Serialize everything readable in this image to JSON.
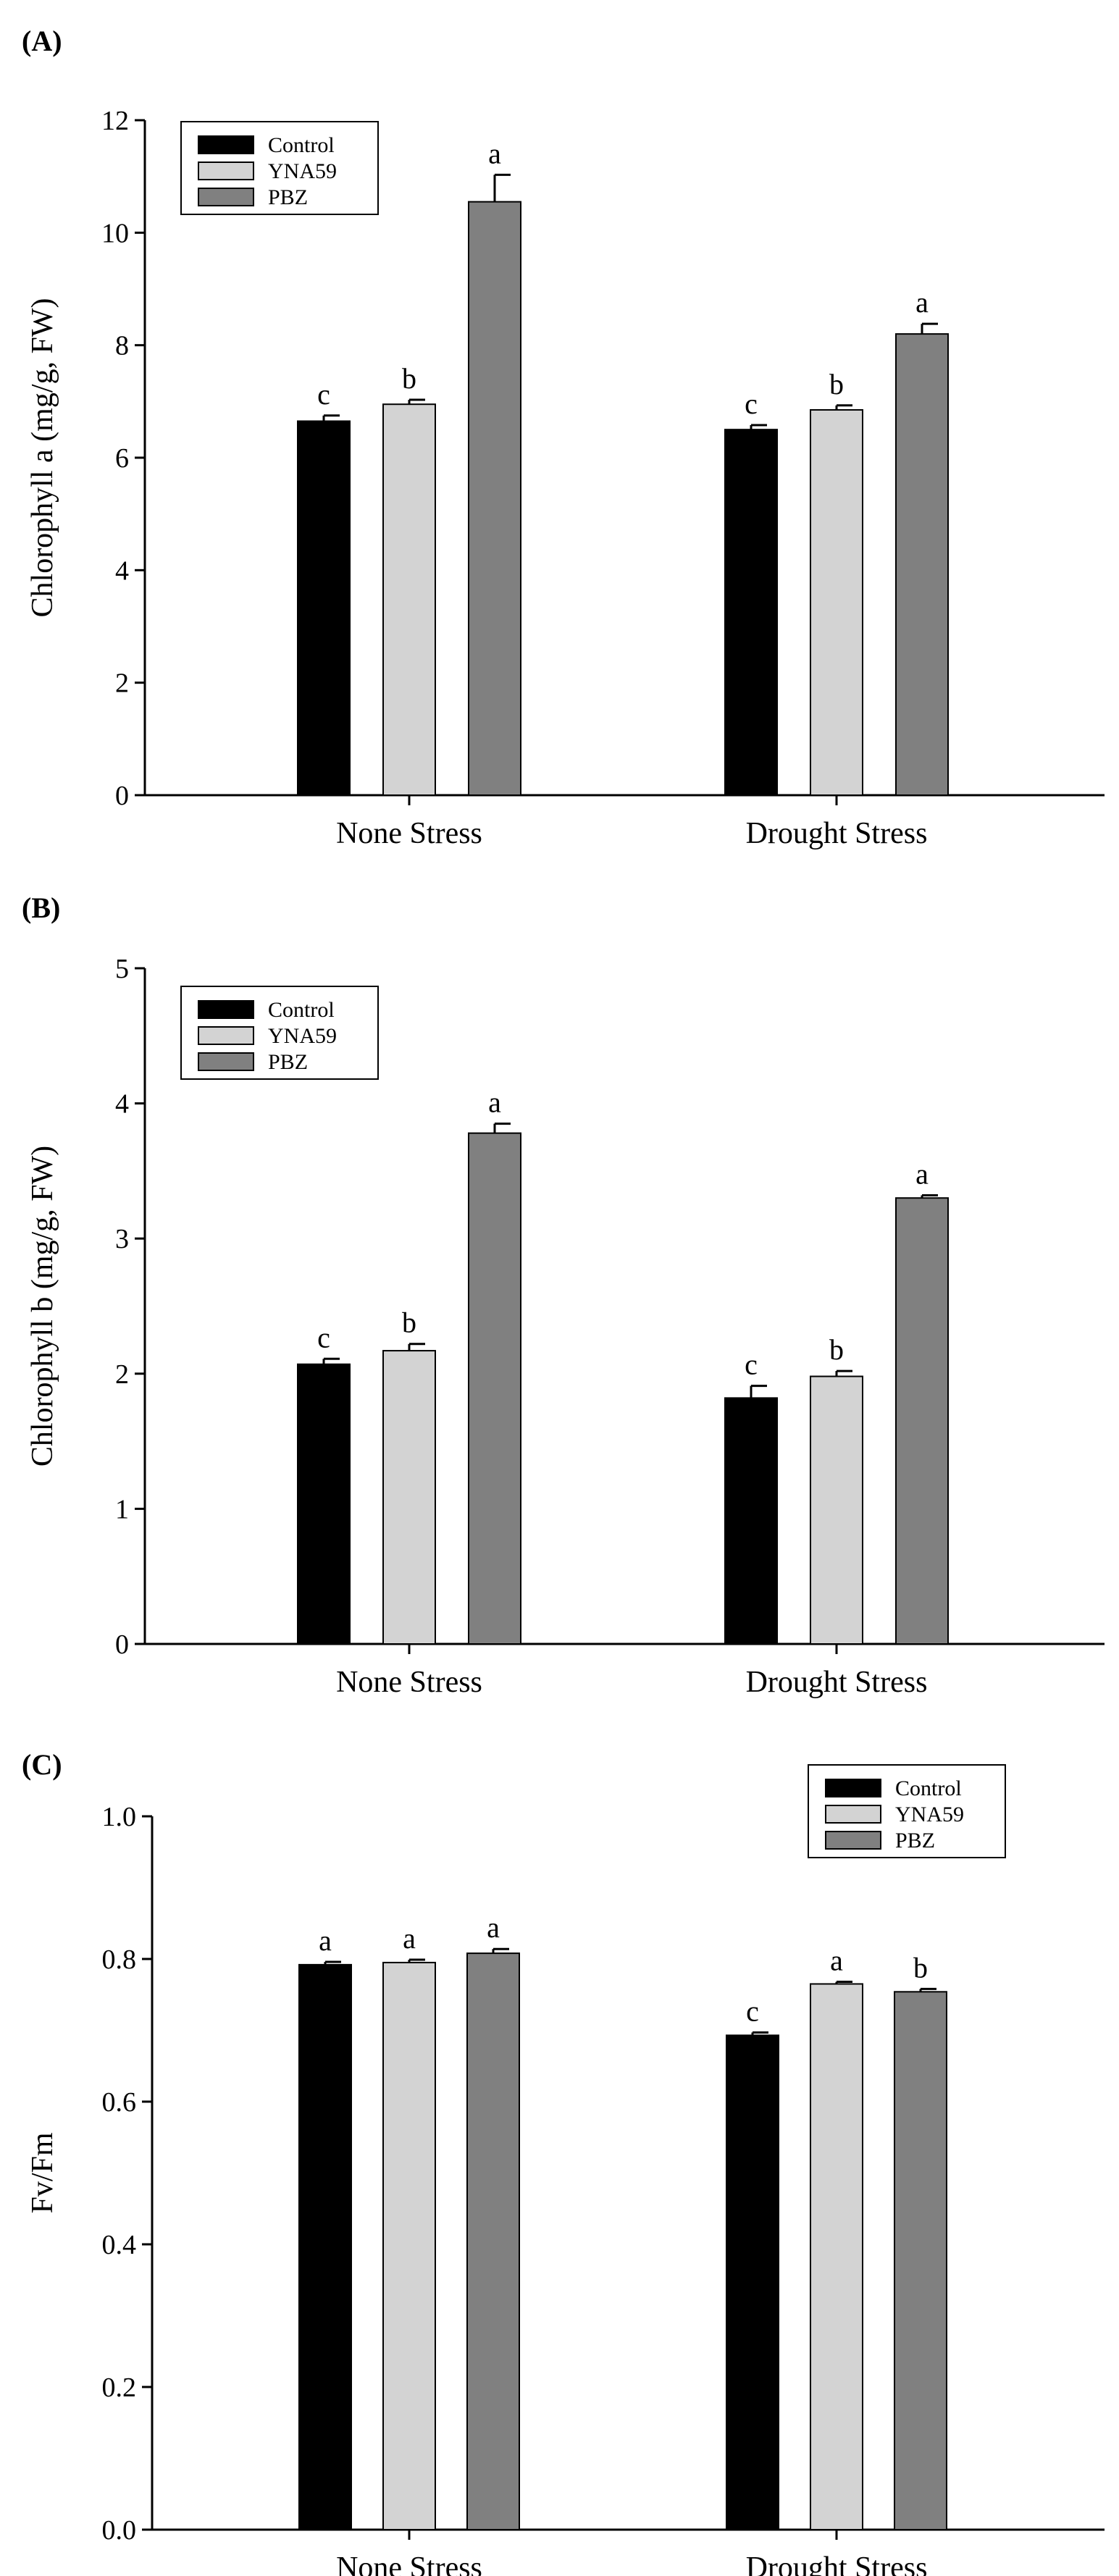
{
  "chart_data": [
    {
      "type": "bar",
      "panel_label": "(A)",
      "categories": [
        "None Stress",
        "Drought Stress"
      ],
      "series": [
        {
          "name": "Control",
          "color": "#000000",
          "values": [
            6.65,
            6.5
          ],
          "errors": [
            0.1,
            0.08
          ],
          "letters": [
            "c",
            "c"
          ]
        },
        {
          "name": "YNA59",
          "color": "#d3d3d3",
          "values": [
            6.95,
            6.85
          ],
          "errors": [
            0.08,
            0.08
          ],
          "letters": [
            "b",
            "b"
          ]
        },
        {
          "name": "PBZ",
          "color": "#808080",
          "values": [
            10.55,
            8.2
          ],
          "errors": [
            0.48,
            0.18
          ],
          "letters": [
            "a",
            "a"
          ]
        }
      ],
      "ylabel": "Chlorophyll a (mg/g, FW)",
      "xlabel": "",
      "ylim": [
        0,
        12
      ],
      "yticks": [
        "0",
        "2",
        "4",
        "6",
        "8",
        "10",
        "12"
      ],
      "legend_position": "top-left"
    },
    {
      "type": "bar",
      "panel_label": "(B)",
      "categories": [
        "None Stress",
        "Drought Stress"
      ],
      "series": [
        {
          "name": "Control",
          "color": "#000000",
          "values": [
            2.07,
            1.82
          ],
          "errors": [
            0.04,
            0.09
          ],
          "letters": [
            "c",
            "c"
          ]
        },
        {
          "name": "YNA59",
          "color": "#d3d3d3",
          "values": [
            2.17,
            1.98
          ],
          "errors": [
            0.05,
            0.04
          ],
          "letters": [
            "b",
            "b"
          ]
        },
        {
          "name": "PBZ",
          "color": "#808080",
          "values": [
            3.78,
            3.3
          ],
          "errors": [
            0.07,
            0.02
          ],
          "letters": [
            "a",
            "a"
          ]
        }
      ],
      "ylabel": "Chlorophyll b (mg/g, FW)",
      "xlabel": "",
      "ylim": [
        0,
        5
      ],
      "yticks": [
        "0",
        "1",
        "2",
        "3",
        "4",
        "5"
      ],
      "legend_position": "top-left"
    },
    {
      "type": "bar",
      "panel_label": "(C)",
      "categories": [
        "None Stress",
        "Drought Stress"
      ],
      "series": [
        {
          "name": "Control",
          "color": "#000000",
          "values": [
            0.792,
            0.693
          ],
          "errors": [
            0.004,
            0.004
          ],
          "letters": [
            "a",
            "c"
          ]
        },
        {
          "name": "YNA59",
          "color": "#d3d3d3",
          "values": [
            0.795,
            0.765
          ],
          "errors": [
            0.004,
            0.003
          ],
          "letters": [
            "a",
            "a"
          ]
        },
        {
          "name": "PBZ",
          "color": "#808080",
          "values": [
            0.808,
            0.754
          ],
          "errors": [
            0.006,
            0.004
          ],
          "letters": [
            "a",
            "b"
          ]
        }
      ],
      "ylabel": "Fv/Fm",
      "xlabel": "",
      "ylim": [
        0,
        1.0
      ],
      "yticks": [
        "0.0",
        "0.2",
        "0.4",
        "0.6",
        "0.8",
        "1.0"
      ],
      "legend_position": "top-right"
    }
  ]
}
